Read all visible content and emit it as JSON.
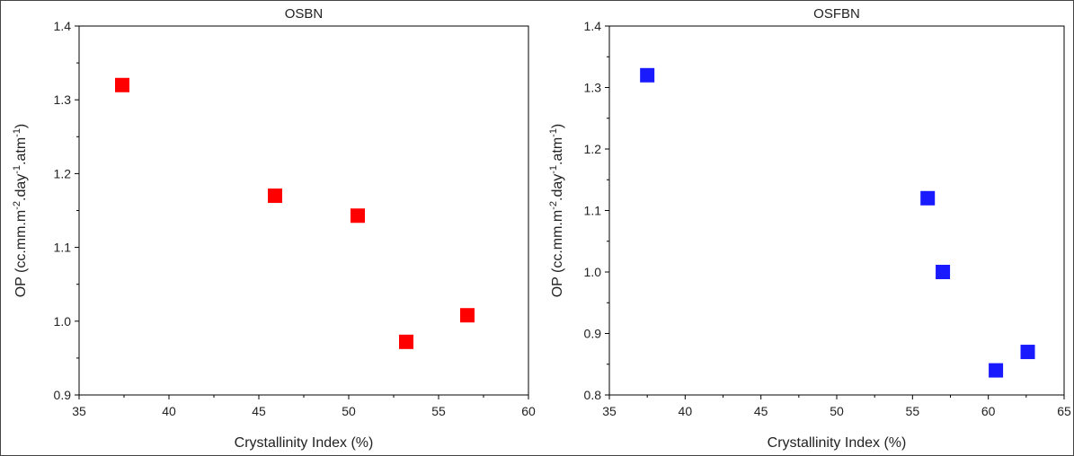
{
  "chart_data": [
    {
      "type": "scatter",
      "title": "OSBN",
      "xlabel": "Crystallinity Index (%)",
      "ylabel": {
        "base": "OP (cc.mm.m",
        "sup1": "-2",
        "mid": ".day",
        "sup2": "-1",
        "mid2": ".atm",
        "sup3": "-1",
        "end": ")"
      },
      "xlim": [
        35,
        60
      ],
      "ylim": [
        0.9,
        1.4
      ],
      "xticks": [
        "35",
        "40",
        "45",
        "50",
        "55",
        "60"
      ],
      "yticks": [
        "0.9",
        "1.0",
        "1.1",
        "1.2",
        "1.3",
        "1.4"
      ],
      "marker_color": "#ff0000",
      "series": [
        {
          "x": [
            37.4,
            45.9,
            50.5,
            53.2,
            56.6
          ],
          "y": [
            1.32,
            1.17,
            1.143,
            0.972,
            1.008
          ]
        }
      ]
    },
    {
      "type": "scatter",
      "title": "OSFBN",
      "xlabel": "Crystallinity Index (%)",
      "ylabel": {
        "base": "OP (cc.mm.m",
        "sup1": "-2",
        "mid": ".day",
        "sup2": "-1",
        "mid2": ".atm",
        "sup3": "-1",
        "end": ")"
      },
      "xlim": [
        35,
        65
      ],
      "ylim": [
        0.8,
        1.4
      ],
      "xticks": [
        "35",
        "40",
        "45",
        "50",
        "55",
        "60",
        "65"
      ],
      "yticks": [
        "0.8",
        "0.9",
        "1.0",
        "1.1",
        "1.2",
        "1.3",
        "1.4"
      ],
      "marker_color": "#1a1aff",
      "series": [
        {
          "x": [
            37.5,
            56.0,
            57.0,
            60.5,
            62.6
          ],
          "y": [
            1.32,
            1.12,
            1.0,
            0.84,
            0.87
          ]
        }
      ]
    }
  ]
}
